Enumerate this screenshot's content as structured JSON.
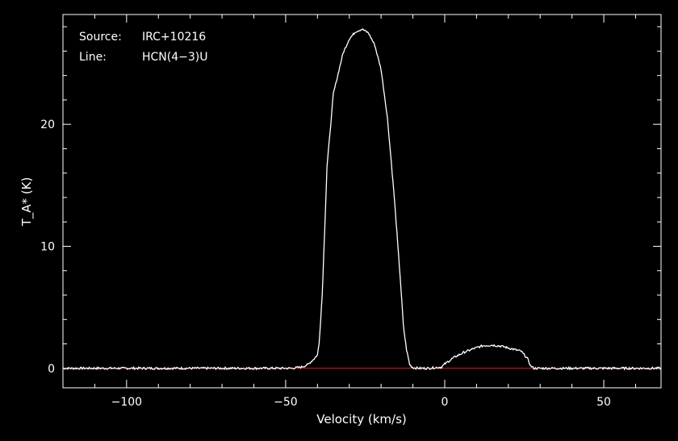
{
  "chart_data": {
    "type": "line",
    "title": "",
    "xlabel": "Velocity (km/s)",
    "ylabel": "T_A* (K)",
    "xlim": [
      -120,
      68
    ],
    "ylim": [
      -1.6,
      29
    ],
    "x_ticks": [
      -100,
      -50,
      0,
      50
    ],
    "x_tick_labels": [
      "−100",
      "−50",
      "0",
      "50"
    ],
    "y_ticks": [
      0,
      10,
      20
    ],
    "y_tick_labels": [
      "0",
      "10",
      "20"
    ],
    "annotations": {
      "source_label": "Source:",
      "source_value": "IRC+10216",
      "line_label": "Line:",
      "line_value": "HCN(4−3)U"
    },
    "baseline": {
      "value": 0,
      "color": "#cc1a1a"
    },
    "series": [
      {
        "color": "#ffffff",
        "x": [
          -120,
          -100,
          -80,
          -60,
          -48,
          -45,
          -43,
          -41,
          -40,
          -39.5,
          -38.5,
          -37,
          -35,
          -32,
          -30,
          -28,
          -26,
          -24,
          -22,
          -20,
          -18,
          -16,
          -14,
          -13,
          -12,
          -11,
          -10,
          -8,
          -5,
          -3,
          -1,
          0,
          3,
          6,
          9,
          12,
          15,
          18,
          21,
          24,
          26,
          27,
          28,
          40,
          55,
          68
        ],
        "y": [
          0,
          0,
          0,
          0,
          0,
          0.1,
          0.3,
          0.8,
          1.1,
          2.0,
          6.0,
          16.5,
          22.5,
          25.8,
          27.0,
          27.6,
          27.8,
          27.5,
          26.5,
          24.5,
          20.5,
          14.5,
          7.5,
          3.5,
          1.5,
          0.3,
          0.05,
          0,
          0,
          0.05,
          0.1,
          0.35,
          0.9,
          1.3,
          1.6,
          1.85,
          1.9,
          1.8,
          1.6,
          1.4,
          0.8,
          0.2,
          0,
          0,
          0,
          0
        ]
      }
    ]
  }
}
